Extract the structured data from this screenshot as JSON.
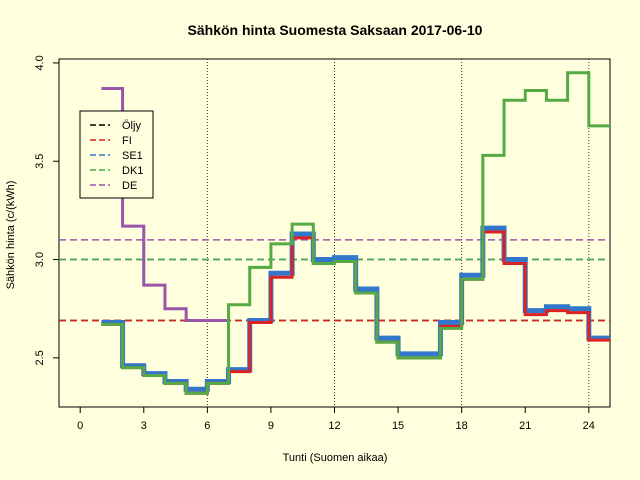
{
  "chart_data": {
    "type": "line",
    "title": "Sähkön hinta Suomesta Saksaan 2017-06-10",
    "xlabel": "Tunti (Suomen aikaa)",
    "ylabel": "Sähkön hinta (c/(kWh)",
    "xlim": [
      -1,
      25
    ],
    "ylim": [
      2.25,
      4.02
    ],
    "xticks": [
      0,
      3,
      6,
      9,
      12,
      15,
      18,
      21,
      24
    ],
    "yticks": [
      2.5,
      3.0,
      3.5,
      4.0
    ],
    "vlines": [
      6,
      12,
      18,
      24
    ],
    "legend_position": "top-left",
    "hours": [
      1,
      2,
      3,
      4,
      5,
      6,
      7,
      8,
      9,
      10,
      11,
      12,
      13,
      14,
      15,
      16,
      17,
      18,
      19,
      20,
      21,
      22,
      23,
      24,
      25
    ],
    "series": [
      {
        "name": "Öljy",
        "style": "dashed-hline",
        "color": "#000000",
        "value": 2.69
      },
      {
        "name": "FI",
        "style": "dashed-hline",
        "color": "#dd2222",
        "value": 2.69
      },
      {
        "name": "SE1",
        "style": "dashed-hline",
        "color": "#3377cc",
        "value": 3.0
      },
      {
        "name": "DK1",
        "style": "dashed-hline",
        "color": "#44aa44",
        "value": 3.0
      },
      {
        "name": "DE",
        "style": "dashed-hline",
        "color": "#9955aa",
        "value": 3.1
      },
      {
        "name": "DE",
        "style": "step",
        "color": "#9955aa",
        "width": 3,
        "values": [
          3.87,
          3.17,
          2.87,
          2.75,
          2.69,
          2.69
        ]
      },
      {
        "name": "SE1",
        "style": "step",
        "color": "#3377cc",
        "width": 5,
        "values": [
          2.68,
          2.46,
          2.42,
          2.38,
          2.34,
          2.38,
          2.44,
          2.69,
          2.93,
          3.13,
          3.0,
          3.01,
          2.85,
          2.6,
          2.52,
          2.52,
          2.68,
          2.92,
          3.16,
          3.0,
          2.74,
          2.76,
          2.75,
          2.6
        ]
      },
      {
        "name": "FI",
        "style": "step",
        "color": "#dd2222",
        "width": 3,
        "values": [
          2.67,
          2.45,
          2.41,
          2.37,
          2.32,
          2.37,
          2.43,
          2.68,
          2.91,
          3.11,
          2.98,
          2.99,
          2.83,
          2.58,
          2.5,
          2.5,
          2.66,
          2.9,
          3.14,
          2.98,
          2.72,
          2.74,
          2.73,
          2.59
        ]
      },
      {
        "name": "DK1",
        "style": "step",
        "color": "#55aa44",
        "width": 3,
        "values": [
          2.67,
          2.45,
          2.41,
          2.37,
          2.32,
          2.37,
          2.77,
          2.96,
          3.08,
          3.18,
          2.98,
          2.99,
          2.83,
          2.58,
          2.5,
          2.5,
          2.65,
          2.9,
          3.53,
          3.81,
          3.86,
          3.81,
          3.95,
          3.68
        ]
      }
    ]
  }
}
